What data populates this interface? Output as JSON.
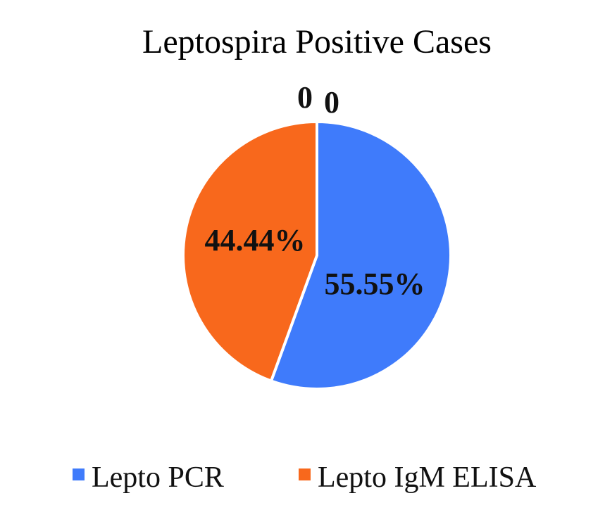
{
  "chart_data": {
    "type": "pie",
    "title": "Leptospira Positive Cases",
    "slices": [
      {
        "name": "Lepto PCR",
        "value": 55.55,
        "label": "55.55%",
        "color": "#3F7BFB"
      },
      {
        "name": "Lepto IgM ELISA",
        "value": 44.44,
        "label": "44.44%",
        "color": "#F8681C"
      }
    ],
    "extra_labels": [
      "0",
      "0"
    ],
    "legend": {
      "position": "bottom",
      "entries": [
        "Lepto PCR",
        "Lepto IgM ELISA"
      ]
    }
  }
}
